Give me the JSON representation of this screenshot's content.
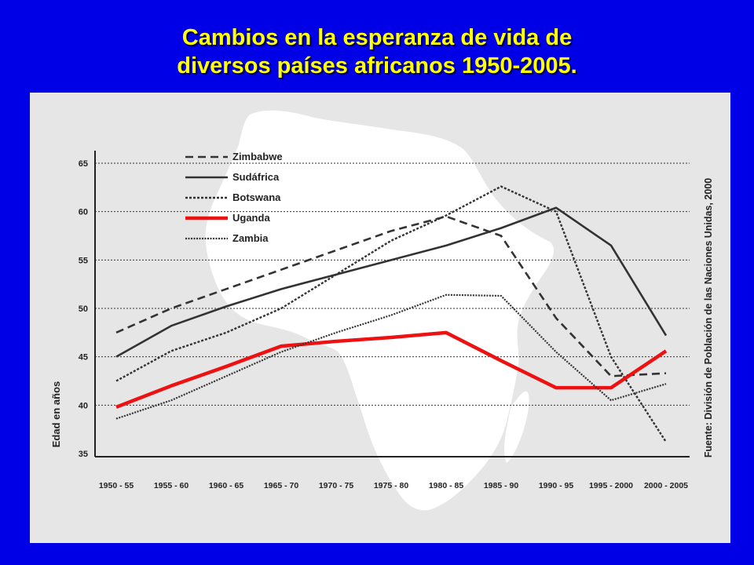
{
  "slide": {
    "title_line1": "Cambios en la esperanza de vida de",
    "title_line2": "diversos países africanos 1950-2005."
  },
  "colors": {
    "background": "#0000e6",
    "title": "#ffff00",
    "panel": "#e6e6e6",
    "map": "#ffffff",
    "uganda": "#ee1111",
    "lines": "#333333"
  },
  "chart_data": {
    "type": "line",
    "ylabel": "Edad en años",
    "source": "Fuente: División de Población de las Naciones Unidas, 2000",
    "ylim": [
      35,
      65
    ],
    "yticks": [
      "35",
      "40",
      "45",
      "50",
      "55",
      "60",
      "65"
    ],
    "grid": true,
    "legend_position": "top-left",
    "categories": [
      "1950 - 55",
      "1955 - 60",
      "1960 - 65",
      "1965 - 70",
      "1970 - 75",
      "1975 - 80",
      "1980 - 85",
      "1985 - 90",
      "1990 - 95",
      "1995 - 2000",
      "2000 - 2005"
    ],
    "series": [
      {
        "name": "Zimbabwe",
        "style": "dashed",
        "values": [
          47.5,
          50,
          52,
          54,
          56,
          58,
          59.5,
          57.5,
          49,
          43,
          43.3
        ]
      },
      {
        "name": "Sudáfrica",
        "style": "solid",
        "values": [
          45,
          48.2,
          50.2,
          52,
          53.5,
          55,
          56.5,
          58.3,
          60.4,
          56.5,
          47.2
        ]
      },
      {
        "name": "Botswana",
        "style": "dotted",
        "values": [
          42.5,
          45.6,
          47.5,
          50,
          53.5,
          57,
          59.6,
          62.6,
          60,
          45,
          36.2
        ]
      },
      {
        "name": "Uganda",
        "style": "red",
        "values": [
          39.8,
          42,
          44,
          46.1,
          46.6,
          47,
          47.5,
          44.6,
          41.8,
          41.8,
          45.6
        ]
      },
      {
        "name": "Zambia",
        "style": "dotted-dense",
        "values": [
          38.6,
          40.5,
          43,
          45.5,
          47.5,
          49.3,
          51.4,
          51.3,
          45.5,
          40.5,
          42.2
        ]
      }
    ]
  }
}
